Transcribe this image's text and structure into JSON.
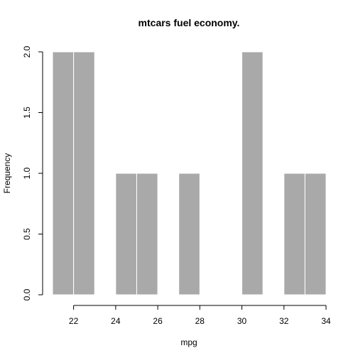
{
  "chart_data": {
    "type": "bar",
    "title": "mtcars fuel economy.",
    "xlabel": "mpg",
    "ylabel": "Frequency",
    "bins": [
      {
        "x0": 21,
        "x1": 22,
        "count": 2
      },
      {
        "x0": 22,
        "x1": 23,
        "count": 2
      },
      {
        "x0": 23,
        "x1": 24,
        "count": 0
      },
      {
        "x0": 24,
        "x1": 25,
        "count": 1
      },
      {
        "x0": 25,
        "x1": 26,
        "count": 1
      },
      {
        "x0": 26,
        "x1": 27,
        "count": 0
      },
      {
        "x0": 27,
        "x1": 28,
        "count": 1
      },
      {
        "x0": 28,
        "x1": 29,
        "count": 0
      },
      {
        "x0": 29,
        "x1": 30,
        "count": 0
      },
      {
        "x0": 30,
        "x1": 31,
        "count": 2
      },
      {
        "x0": 31,
        "x1": 32,
        "count": 0
      },
      {
        "x0": 32,
        "x1": 33,
        "count": 1
      },
      {
        "x0": 33,
        "x1": 34,
        "count": 1
      }
    ],
    "xlim": [
      21,
      34
    ],
    "ylim": [
      0,
      2
    ],
    "xticks": [
      "22",
      "24",
      "26",
      "28",
      "30",
      "32",
      "34"
    ],
    "yticks": [
      "0.0",
      "0.5",
      "1.0",
      "1.5",
      "2.0"
    ],
    "bar_color": "#a9a9a9",
    "bar_border_color": "#ffffff",
    "grid": false,
    "legend": "none"
  }
}
